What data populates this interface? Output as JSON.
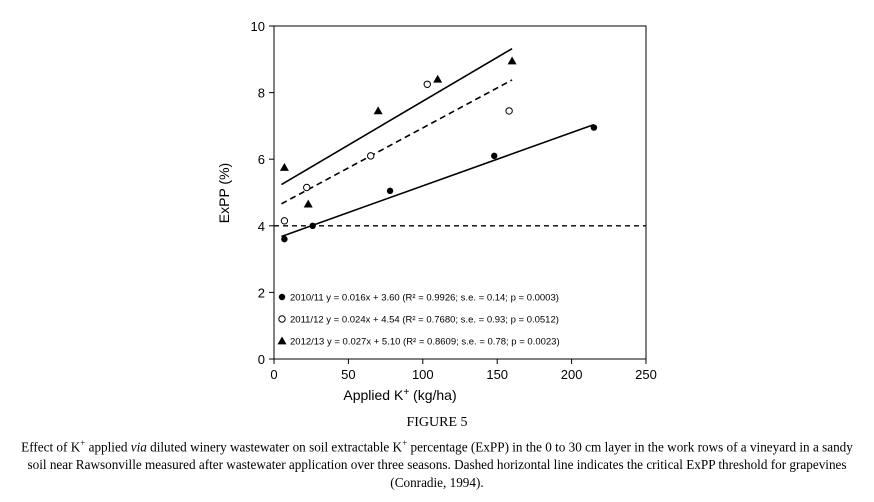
{
  "figure": {
    "label": "FIGURE 5",
    "caption_parts": [
      {
        "text": "Effect of K",
        "style": "normal"
      },
      {
        "text": "+",
        "style": "sup"
      },
      {
        "text": " applied ",
        "style": "normal"
      },
      {
        "text": "via",
        "style": "italic"
      },
      {
        "text": " diluted winery wastewater on soil extractable K",
        "style": "normal"
      },
      {
        "text": "+",
        "style": "sup"
      },
      {
        "text": " percentage (ExPP) in the 0 to 30 cm layer in the work rows of a vineyard in a sandy soil near Rawsonville measured after wastewater application over three seasons. Dashed horizontal line indicates the critical ExPP threshold for grapevines (Conradie, 1994).",
        "style": "normal"
      }
    ]
  },
  "chart_data": {
    "type": "scatter",
    "xlabel": "Applied K⁺ (kg/ha)",
    "ylabel": "ExPP (%)",
    "xlim": [
      0,
      250
    ],
    "ylim": [
      0,
      10
    ],
    "xticks": [
      0,
      50,
      100,
      150,
      200,
      250
    ],
    "yticks": [
      0,
      2,
      4,
      6,
      8,
      10
    ],
    "grid": false,
    "legend_position": "bottom-left",
    "series": [
      {
        "name": "2010/11",
        "legend_label": "2010/11  y = 0.016x + 3.60 (R² = 0.9926; s.e. = 0.14; p = 0.0003)",
        "marker": "filled-circle",
        "trend_style": "solid",
        "x": [
          7,
          26,
          78,
          148,
          215
        ],
        "y": [
          3.6,
          4.0,
          5.05,
          6.1,
          6.95
        ],
        "trend": {
          "x": [
            5,
            215
          ],
          "y": [
            3.68,
            7.04
          ]
        }
      },
      {
        "name": "2011/12",
        "legend_label": "2011/12  y = 0.024x + 4.54 (R² = 0.7680; s.e. = 0.93; p = 0.0512)",
        "marker": "open-circle",
        "trend_style": "dashed",
        "x": [
          7,
          22,
          65,
          103,
          158
        ],
        "y": [
          4.15,
          5.15,
          6.1,
          8.25,
          7.45
        ],
        "trend": {
          "x": [
            5,
            160
          ],
          "y": [
            4.66,
            8.38
          ]
        }
      },
      {
        "name": "2012/13",
        "legend_label": "2012/13 y = 0.027x + 5.10 (R² = 0.8609; s.e. = 0.78; p = 0.0023)",
        "marker": "filled-triangle",
        "trend_style": "solid",
        "x": [
          7,
          23,
          70,
          110,
          160
        ],
        "y": [
          5.75,
          4.65,
          7.45,
          8.4,
          8.95
        ],
        "trend": {
          "x": [
            5,
            160
          ],
          "y": [
            5.24,
            9.32
          ]
        }
      }
    ],
    "reference_line": {
      "y": 4,
      "style": "dashed",
      "x_range": [
        0,
        250
      ]
    }
  }
}
